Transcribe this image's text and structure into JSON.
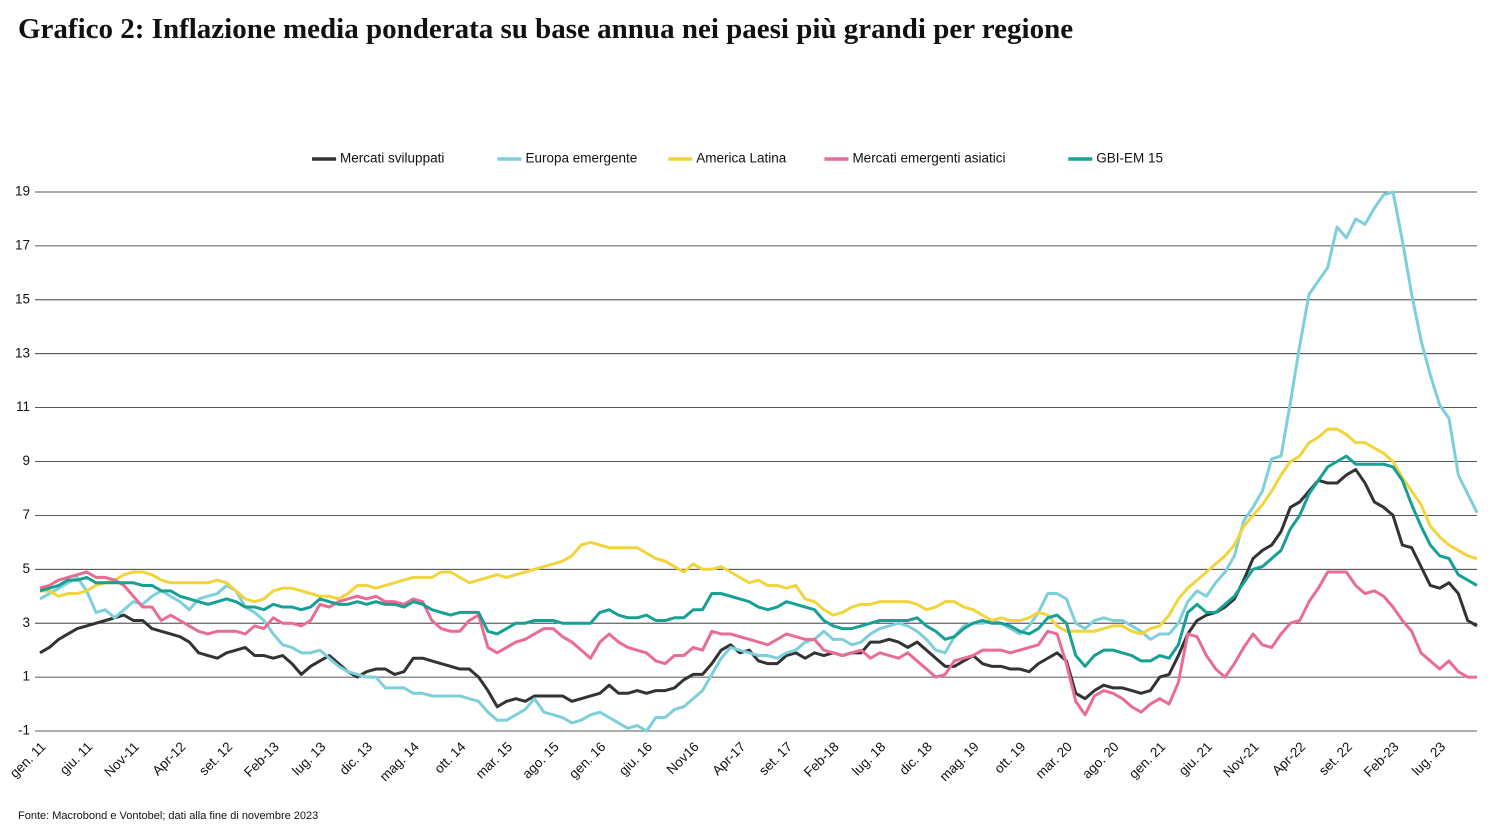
{
  "chart_data": {
    "type": "line",
    "title": "Grafico 2: Inflazione media ponderata su base annua nei paesi più grandi per regione",
    "source": "Fonte: Macrobond e Vontobel; dati alla fine di novembre 2023",
    "legend": "top",
    "grid": true,
    "ylim": [
      -1,
      19
    ],
    "yticks": [
      -1,
      1,
      3,
      5,
      7,
      9,
      11,
      13,
      15,
      17,
      19
    ],
    "categories": [
      "gen. 11",
      null,
      null,
      null,
      null,
      "giu. 11",
      null,
      null,
      null,
      null,
      "Nov-11",
      null,
      null,
      null,
      null,
      "Apr-12",
      null,
      null,
      null,
      null,
      "set. 12",
      null,
      null,
      null,
      null,
      "Feb-13",
      null,
      null,
      null,
      null,
      "lug. 13",
      null,
      null,
      null,
      null,
      "dic. 13",
      null,
      null,
      null,
      null,
      "mag. 14",
      null,
      null,
      null,
      null,
      "ott. 14",
      null,
      null,
      null,
      null,
      "mar. 15",
      null,
      null,
      null,
      null,
      "ago. 15",
      null,
      null,
      null,
      null,
      "gen. 16",
      null,
      null,
      null,
      null,
      "giu. 16",
      null,
      null,
      null,
      null,
      "Nov16",
      null,
      null,
      null,
      null,
      "Apr-17",
      null,
      null,
      null,
      null,
      "set. 17",
      null,
      null,
      null,
      null,
      "Feb-18",
      null,
      null,
      null,
      null,
      "lug. 18",
      null,
      null,
      null,
      null,
      "dic. 18",
      null,
      null,
      null,
      null,
      "mag. 19",
      null,
      null,
      null,
      null,
      "ott. 19",
      null,
      null,
      null,
      null,
      "mar. 20",
      null,
      null,
      null,
      null,
      "ago. 20",
      null,
      null,
      null,
      null,
      "gen. 21",
      null,
      null,
      null,
      null,
      "giu. 21",
      null,
      null,
      null,
      null,
      "Nov-21",
      null,
      null,
      null,
      null,
      "Apr-22",
      null,
      null,
      null,
      null,
      "set. 22",
      null,
      null,
      null,
      null,
      "Feb-23",
      null,
      null,
      null,
      null,
      "lug. 23",
      null,
      null,
      null,
      null
    ],
    "series": [
      {
        "name": "Mercati sviluppati",
        "color": "#333333",
        "values": [
          1.9,
          2.1,
          2.4,
          2.6,
          2.8,
          2.9,
          3.0,
          3.1,
          3.2,
          3.3,
          3.1,
          3.1,
          2.8,
          2.7,
          2.6,
          2.5,
          2.3,
          1.9,
          1.8,
          1.7,
          1.9,
          2.0,
          2.1,
          1.8,
          1.8,
          1.7,
          1.8,
          1.5,
          1.1,
          1.4,
          1.6,
          1.8,
          1.5,
          1.2,
          1.0,
          1.2,
          1.3,
          1.3,
          1.1,
          1.2,
          1.7,
          1.7,
          1.6,
          1.5,
          1.4,
          1.3,
          1.3,
          1.0,
          0.5,
          -0.1,
          0.1,
          0.2,
          0.1,
          0.3,
          0.3,
          0.3,
          0.3,
          0.1,
          0.2,
          0.3,
          0.4,
          0.7,
          0.4,
          0.4,
          0.5,
          0.4,
          0.5,
          0.5,
          0.6,
          0.9,
          1.1,
          1.1,
          1.5,
          2.0,
          2.2,
          1.9,
          2.0,
          1.6,
          1.5,
          1.5,
          1.8,
          1.9,
          1.7,
          1.9,
          1.8,
          1.9,
          1.8,
          1.9,
          1.9,
          2.3,
          2.3,
          2.4,
          2.3,
          2.1,
          2.3,
          2.0,
          1.7,
          1.4,
          1.4,
          1.6,
          1.8,
          1.5,
          1.4,
          1.4,
          1.3,
          1.3,
          1.2,
          1.5,
          1.7,
          1.9,
          1.6,
          0.4,
          0.2,
          0.5,
          0.7,
          0.6,
          0.6,
          0.5,
          0.4,
          0.5,
          1.0,
          1.1,
          1.8,
          2.6,
          3.1,
          3.3,
          3.4,
          3.6,
          3.9,
          4.6,
          5.4,
          5.7,
          5.9,
          6.4,
          7.3,
          7.5,
          7.9,
          8.3,
          8.2,
          8.2,
          8.5,
          8.7,
          8.2,
          7.5,
          7.3,
          7.0,
          5.9,
          5.8,
          5.1,
          4.4,
          4.3,
          4.5,
          4.1,
          3.1,
          2.9
        ]
      },
      {
        "name": "Europa emergente",
        "color": "#7ecfdc",
        "values": [
          3.9,
          4.1,
          4.3,
          4.5,
          4.7,
          4.2,
          3.4,
          3.5,
          3.2,
          3.5,
          3.8,
          3.7,
          4.0,
          4.2,
          4.0,
          3.8,
          3.5,
          3.9,
          4.0,
          4.1,
          4.4,
          4.2,
          3.6,
          3.4,
          3.1,
          2.6,
          2.2,
          2.1,
          1.9,
          1.9,
          2.0,
          1.7,
          1.4,
          1.2,
          1.1,
          1.0,
          1.0,
          0.6,
          0.6,
          0.6,
          0.4,
          0.4,
          0.3,
          0.3,
          0.3,
          0.3,
          0.2,
          0.1,
          -0.3,
          -0.6,
          -0.6,
          -0.4,
          -0.2,
          0.2,
          -0.3,
          -0.4,
          -0.5,
          -0.7,
          -0.6,
          -0.4,
          -0.3,
          -0.5,
          -0.7,
          -0.9,
          -0.8,
          -1.0,
          -0.5,
          -0.5,
          -0.2,
          -0.1,
          0.2,
          0.5,
          1.1,
          1.7,
          2.1,
          2.0,
          1.9,
          1.8,
          1.8,
          1.7,
          1.9,
          2.0,
          2.3,
          2.4,
          2.7,
          2.4,
          2.4,
          2.2,
          2.3,
          2.6,
          2.8,
          2.9,
          3.0,
          2.9,
          2.7,
          2.4,
          2.0,
          1.9,
          2.5,
          2.9,
          3.0,
          3.0,
          3.1,
          3.0,
          2.8,
          2.6,
          2.9,
          3.4,
          4.1,
          4.1,
          3.9,
          3.0,
          2.8,
          3.1,
          3.2,
          3.1,
          3.1,
          2.9,
          2.7,
          2.4,
          2.6,
          2.6,
          3.0,
          3.8,
          4.2,
          4.0,
          4.5,
          4.9,
          5.5,
          6.8,
          7.3,
          7.9,
          9.1,
          9.2,
          11.2,
          13.3,
          15.2,
          15.7,
          16.2,
          17.7,
          17.3,
          18.0,
          17.8,
          18.4,
          18.9,
          19.0,
          17.2,
          15.2,
          13.5,
          12.2,
          11.1,
          10.6,
          8.5,
          7.8,
          7.1
        ]
      },
      {
        "name": "America Latina",
        "color": "#f2d43c",
        "values": [
          4.2,
          4.2,
          4.0,
          4.1,
          4.1,
          4.2,
          4.4,
          4.5,
          4.6,
          4.8,
          4.9,
          4.9,
          4.8,
          4.6,
          4.5,
          4.5,
          4.5,
          4.5,
          4.5,
          4.6,
          4.5,
          4.2,
          3.9,
          3.8,
          3.9,
          4.2,
          4.3,
          4.3,
          4.2,
          4.1,
          4.0,
          4.0,
          3.9,
          4.1,
          4.4,
          4.4,
          4.3,
          4.4,
          4.5,
          4.6,
          4.7,
          4.7,
          4.7,
          4.9,
          4.9,
          4.7,
          4.5,
          4.6,
          4.7,
          4.8,
          4.7,
          4.8,
          4.9,
          5.0,
          5.1,
          5.2,
          5.3,
          5.5,
          5.9,
          6.0,
          5.9,
          5.8,
          5.8,
          5.8,
          5.8,
          5.6,
          5.4,
          5.3,
          5.1,
          4.9,
          5.2,
          5.0,
          5.0,
          5.1,
          4.9,
          4.7,
          4.5,
          4.6,
          4.4,
          4.4,
          4.3,
          4.4,
          3.9,
          3.8,
          3.5,
          3.3,
          3.4,
          3.6,
          3.7,
          3.7,
          3.8,
          3.8,
          3.8,
          3.8,
          3.7,
          3.5,
          3.6,
          3.8,
          3.8,
          3.6,
          3.5,
          3.3,
          3.1,
          3.2,
          3.1,
          3.1,
          3.2,
          3.4,
          3.3,
          2.9,
          2.7,
          2.7,
          2.7,
          2.7,
          2.8,
          2.9,
          2.9,
          2.7,
          2.6,
          2.8,
          2.9,
          3.3,
          3.9,
          4.3,
          4.6,
          4.9,
          5.2,
          5.5,
          5.9,
          6.6,
          7.0,
          7.4,
          7.9,
          8.5,
          9.0,
          9.2,
          9.7,
          9.9,
          10.2,
          10.2,
          10.0,
          9.7,
          9.7,
          9.5,
          9.3,
          9.0,
          8.4,
          7.9,
          7.4,
          6.6,
          6.2,
          5.9,
          5.7,
          5.5,
          5.4
        ]
      },
      {
        "name": "Mercati emergenti asiatici",
        "color": "#e96d92",
        "values": [
          4.3,
          4.4,
          4.6,
          4.7,
          4.8,
          4.9,
          4.7,
          4.7,
          4.6,
          4.4,
          4.0,
          3.6,
          3.6,
          3.1,
          3.3,
          3.1,
          2.9,
          2.7,
          2.6,
          2.7,
          2.7,
          2.7,
          2.6,
          2.9,
          2.8,
          3.2,
          3.0,
          3.0,
          2.9,
          3.1,
          3.7,
          3.6,
          3.8,
          3.9,
          4.0,
          3.9,
          4.0,
          3.8,
          3.8,
          3.7,
          3.9,
          3.8,
          3.1,
          2.8,
          2.7,
          2.7,
          3.1,
          3.3,
          2.1,
          1.9,
          2.1,
          2.3,
          2.4,
          2.6,
          2.8,
          2.8,
          2.5,
          2.3,
          2.0,
          1.7,
          2.3,
          2.6,
          2.3,
          2.1,
          2.0,
          1.9,
          1.6,
          1.5,
          1.8,
          1.8,
          2.1,
          2.0,
          2.7,
          2.6,
          2.6,
          2.5,
          2.4,
          2.3,
          2.2,
          2.4,
          2.6,
          2.5,
          2.4,
          2.4,
          2.0,
          1.9,
          1.8,
          1.9,
          2.0,
          1.7,
          1.9,
          1.8,
          1.7,
          1.9,
          1.6,
          1.3,
          1.0,
          1.1,
          1.6,
          1.7,
          1.8,
          2.0,
          2.0,
          2.0,
          1.9,
          2.0,
          2.1,
          2.2,
          2.7,
          2.6,
          1.5,
          0.1,
          -0.4,
          0.3,
          0.5,
          0.4,
          0.2,
          -0.1,
          -0.3,
          0.0,
          0.2,
          0.0,
          0.8,
          2.6,
          2.5,
          1.8,
          1.3,
          1.0,
          1.5,
          2.1,
          2.6,
          2.2,
          2.1,
          2.6,
          3.0,
          3.1,
          3.8,
          4.3,
          4.9,
          4.9,
          4.9,
          4.4,
          4.1,
          4.2,
          4.0,
          3.6,
          3.1,
          2.7,
          1.9,
          1.6,
          1.3,
          1.6,
          1.2,
          1.0,
          1.0
        ]
      },
      {
        "name": "GBI-EM 15",
        "color": "#16a096",
        "values": [
          4.2,
          4.3,
          4.4,
          4.6,
          4.6,
          4.7,
          4.5,
          4.5,
          4.5,
          4.5,
          4.5,
          4.4,
          4.4,
          4.2,
          4.2,
          4.0,
          3.9,
          3.8,
          3.7,
          3.8,
          3.9,
          3.8,
          3.6,
          3.6,
          3.5,
          3.7,
          3.6,
          3.6,
          3.5,
          3.6,
          3.9,
          3.8,
          3.7,
          3.7,
          3.8,
          3.7,
          3.8,
          3.7,
          3.7,
          3.6,
          3.8,
          3.7,
          3.5,
          3.4,
          3.3,
          3.4,
          3.4,
          3.4,
          2.7,
          2.6,
          2.8,
          3.0,
          3.0,
          3.1,
          3.1,
          3.1,
          3.0,
          3.0,
          3.0,
          3.0,
          3.4,
          3.5,
          3.3,
          3.2,
          3.2,
          3.3,
          3.1,
          3.1,
          3.2,
          3.2,
          3.5,
          3.5,
          4.1,
          4.1,
          4.0,
          3.9,
          3.8,
          3.6,
          3.5,
          3.6,
          3.8,
          3.7,
          3.6,
          3.5,
          3.1,
          2.9,
          2.8,
          2.8,
          2.9,
          3.0,
          3.1,
          3.1,
          3.1,
          3.1,
          3.2,
          2.9,
          2.7,
          2.4,
          2.5,
          2.8,
          3.0,
          3.1,
          3.0,
          3.0,
          2.9,
          2.7,
          2.6,
          2.8,
          3.2,
          3.3,
          3.0,
          1.8,
          1.4,
          1.8,
          2.0,
          2.0,
          1.9,
          1.8,
          1.6,
          1.6,
          1.8,
          1.7,
          2.2,
          3.4,
          3.7,
          3.4,
          3.4,
          3.7,
          4.0,
          4.5,
          5.0,
          5.1,
          5.4,
          5.7,
          6.5,
          7.0,
          7.8,
          8.3,
          8.8,
          9.0,
          9.2,
          8.9,
          8.9,
          8.9,
          8.9,
          8.8,
          8.3,
          7.4,
          6.6,
          5.9,
          5.5,
          5.4,
          4.8,
          4.6,
          4.4
        ]
      }
    ]
  }
}
